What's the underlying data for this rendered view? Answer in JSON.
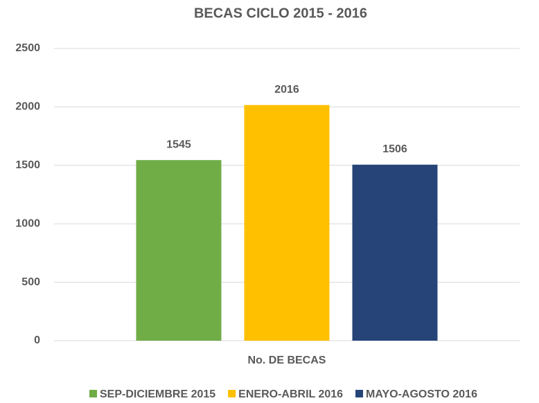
{
  "chart_data": {
    "type": "bar",
    "title": "BECAS CICLO 2015 - 2016",
    "categories": [
      "No. DE BECAS"
    ],
    "series": [
      {
        "name": "SEP-DICIEMBRE 2015",
        "color": "#70ad47",
        "values": [
          1545
        ]
      },
      {
        "name": "ENERO-ABRIL 2016",
        "color": "#ffc000",
        "values": [
          2016
        ]
      },
      {
        "name": "MAYO-AGOSTO 2016",
        "color": "#264478",
        "values": [
          1506
        ]
      }
    ],
    "ylim": [
      0,
      2500
    ],
    "yticks": [
      0,
      500,
      1000,
      1500,
      2000,
      2500
    ],
    "grid": true,
    "legend": "bottom"
  }
}
